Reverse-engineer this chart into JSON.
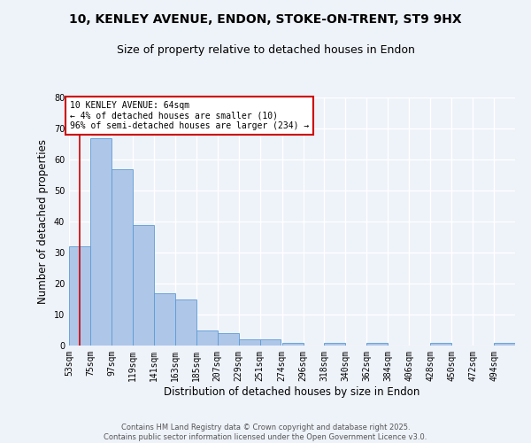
{
  "title_line1": "10, KENLEY AVENUE, ENDON, STOKE-ON-TRENT, ST9 9HX",
  "title_line2": "Size of property relative to detached houses in Endon",
  "xlabel": "Distribution of detached houses by size in Endon",
  "ylabel": "Number of detached properties",
  "bin_labels": [
    "53sqm",
    "75sqm",
    "97sqm",
    "119sqm",
    "141sqm",
    "163sqm",
    "185sqm",
    "207sqm",
    "229sqm",
    "251sqm",
    "274sqm",
    "296sqm",
    "318sqm",
    "340sqm",
    "362sqm",
    "384sqm",
    "406sqm",
    "428sqm",
    "450sqm",
    "472sqm",
    "494sqm"
  ],
  "bin_edges": [
    53,
    75,
    97,
    119,
    141,
    163,
    185,
    207,
    229,
    251,
    274,
    296,
    318,
    340,
    362,
    384,
    406,
    428,
    450,
    472,
    494,
    516
  ],
  "bar_values": [
    32,
    67,
    57,
    39,
    17,
    15,
    5,
    4,
    2,
    2,
    1,
    0,
    1,
    0,
    1,
    0,
    0,
    1,
    0,
    0,
    1
  ],
  "bar_color": "#aec6e8",
  "bar_edge_color": "#5b9bd5",
  "property_size": 64,
  "vline_color": "#cc0000",
  "annotation_text": "10 KENLEY AVENUE: 64sqm\n← 4% of detached houses are smaller (10)\n96% of semi-detached houses are larger (234) →",
  "annotation_box_color": "#ffffff",
  "annotation_box_edge": "#cc0000",
  "ylim": [
    0,
    80
  ],
  "yticks": [
    0,
    10,
    20,
    30,
    40,
    50,
    60,
    70,
    80
  ],
  "background_color": "#eef2f9",
  "footer_line1": "Contains HM Land Registry data © Crown copyright and database right 2025.",
  "footer_line2": "Contains public sector information licensed under the Open Government Licence v3.0.",
  "grid_color": "#ffffff",
  "title_fontsize": 10,
  "subtitle_fontsize": 9,
  "axis_label_fontsize": 8.5,
  "tick_fontsize": 7
}
